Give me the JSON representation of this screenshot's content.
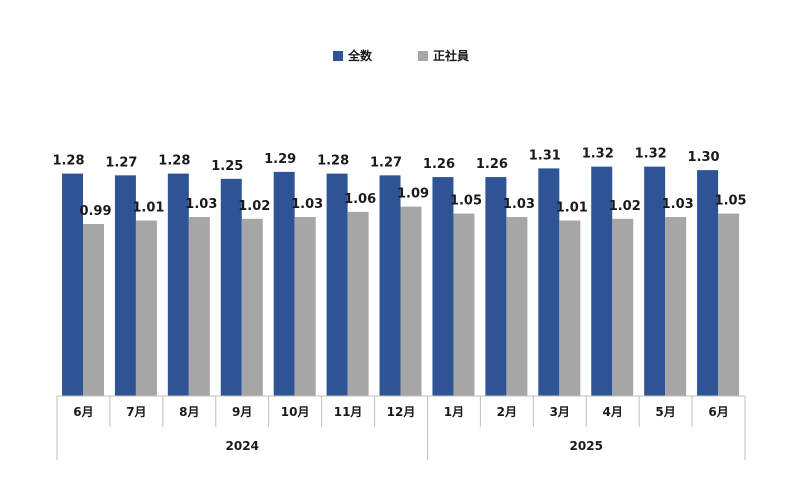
{
  "chart_data": {
    "type": "bar",
    "categories": [
      "6月",
      "7月",
      "8月",
      "9月",
      "10月",
      "11月",
      "12月",
      "1月",
      "2月",
      "3月",
      "4月",
      "5月",
      "6月"
    ],
    "groups": [
      {
        "label": "2024",
        "count": 7
      },
      {
        "label": "2025",
        "count": 6
      }
    ],
    "series": [
      {
        "name": "全数",
        "color": "#2f5496",
        "values": [
          1.28,
          1.27,
          1.28,
          1.25,
          1.29,
          1.28,
          1.27,
          1.26,
          1.26,
          1.31,
          1.32,
          1.32,
          1.3
        ],
        "labels": [
          "1.28",
          "1.27",
          "1.28",
          "1.25",
          "1.29",
          "1.28",
          "1.27",
          "1.26",
          "1.26",
          "1.31",
          "1.32",
          "1.32",
          "1.30"
        ]
      },
      {
        "name": "正社員",
        "color": "#a6a6a6",
        "values": [
          0.99,
          1.01,
          1.03,
          1.02,
          1.03,
          1.06,
          1.09,
          1.05,
          1.03,
          1.01,
          1.02,
          1.03,
          1.05
        ],
        "labels": [
          "0.99",
          "1.01",
          "1.03",
          "1.02",
          "1.03",
          "1.06",
          "1.09",
          "1.05",
          "1.03",
          "1.01",
          "1.02",
          "1.03",
          "1.05"
        ]
      }
    ],
    "ylim": [
      0,
      1.6
    ],
    "legend": "top-center",
    "grid": false,
    "title": "",
    "xlabel": "",
    "ylabel": ""
  }
}
